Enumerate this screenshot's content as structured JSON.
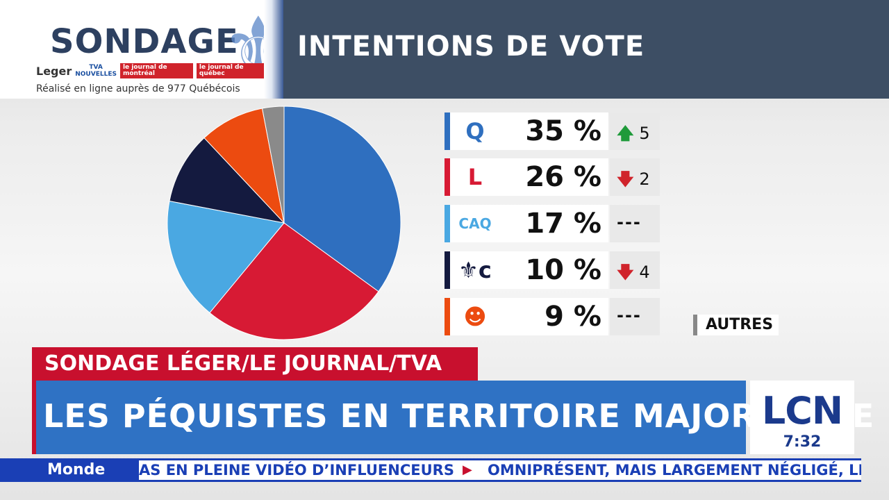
{
  "header": {
    "brand_title": "SONDAGE",
    "sponsors": {
      "leger": "Leger",
      "tva_top": "TVA",
      "tva_bottom": "NOUVELLES",
      "jdm": "le journal de montréal",
      "jdq": "le journal de québec"
    },
    "subtitle": "Réalisé en ligne auprès de 977 Québécois",
    "section_title": "INTENTIONS DE VOTE"
  },
  "chart_data": {
    "type": "pie",
    "values": [
      35,
      26,
      17,
      10,
      9,
      3
    ],
    "changes": [
      "5",
      "2",
      "---",
      "4",
      "---",
      ""
    ],
    "change_direction": [
      "up",
      "down",
      "none",
      "down",
      "none",
      "none"
    ],
    "colors": [
      "#2f6fbf",
      "#d71a34",
      "#4aa8e2",
      "#141a3f",
      "#ec4b10",
      "#8a8a8a"
    ],
    "labels": [
      "35 %",
      "26 %",
      "17 %",
      "10 %",
      "9 %",
      ""
    ],
    "others_label": "AUTRES"
  },
  "parties": [
    {
      "logo_text": "Q",
      "logo_color": "#2f6fbf",
      "accent": "#2f6fbf"
    },
    {
      "logo_text": "L",
      "logo_color": "#d71a34",
      "accent": "#d71a34"
    },
    {
      "logo_text": "CAQ",
      "logo_color": "#4aa8e2",
      "accent": "#4aa8e2"
    },
    {
      "logo_text": "⚜c",
      "logo_color": "#141a3f",
      "accent": "#141a3f"
    },
    {
      "logo_text": "☻",
      "logo_color": "#ec4b10",
      "accent": "#ec4b10"
    }
  ],
  "banner": {
    "kicker": "SONDAGE LÉGER/LE JOURNAL/TVA",
    "headline": "LES PÉQUISTES EN TERRITOIRE MAJORITAIRE"
  },
  "network": {
    "logo": "LCN",
    "time": "7:32"
  },
  "ticker": {
    "section": "Monde",
    "item1": "AS EN PLEINE VIDÉO D’INFLUENCEURS",
    "separator": "▶",
    "item2": "OMNIPRÉSENT, MAIS LARGEMENT NÉGLIGÉ, LE"
  }
}
